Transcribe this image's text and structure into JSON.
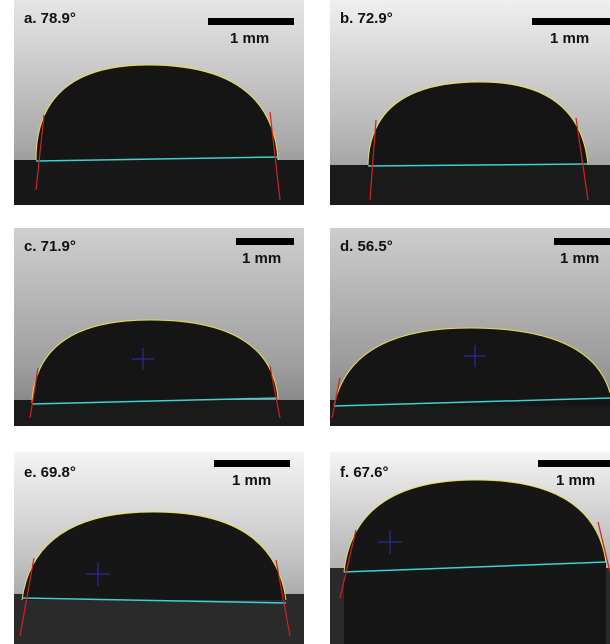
{
  "panels": [
    {
      "label": "a. 78.9°",
      "scale": "1 mm"
    },
    {
      "label": "b. 72.9°",
      "scale": "1 mm"
    },
    {
      "label": "c. 71.9°",
      "scale": "1 mm"
    },
    {
      "label": "d. 56.5°",
      "scale": "1 mm"
    },
    {
      "label": "e. 69.8°",
      "scale": "1 mm"
    },
    {
      "label": "f. 67.6°",
      "scale": "1 mm"
    }
  ],
  "colors": {
    "baseline": "#3fd0d0",
    "tangent": "#d42020",
    "outline": "#e6e04a",
    "center_cross": "#2a2aa0",
    "droplet": "#151515"
  }
}
